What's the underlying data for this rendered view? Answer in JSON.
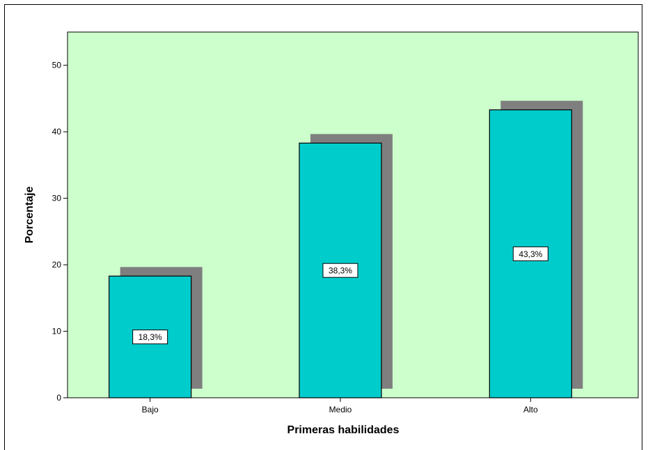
{
  "chart_data": {
    "type": "bar",
    "categories": [
      "Bajo",
      "Medio",
      "Alto"
    ],
    "values": [
      18.3,
      38.3,
      43.3
    ],
    "data_labels": [
      "18,3%",
      "38,3%",
      "43,3%"
    ],
    "xlabel": "Primeras habilidades",
    "ylabel": "Porcentaje",
    "ylim": [
      0,
      55
    ],
    "yticks": [
      0,
      10,
      20,
      30,
      40,
      50
    ],
    "grid": false,
    "bar_shadow": true
  },
  "colors": {
    "plot_background": "#ccffcc",
    "bar_fill": "#00cccc",
    "bar_shadow": "#7f7f7f",
    "axis": "#000000"
  }
}
